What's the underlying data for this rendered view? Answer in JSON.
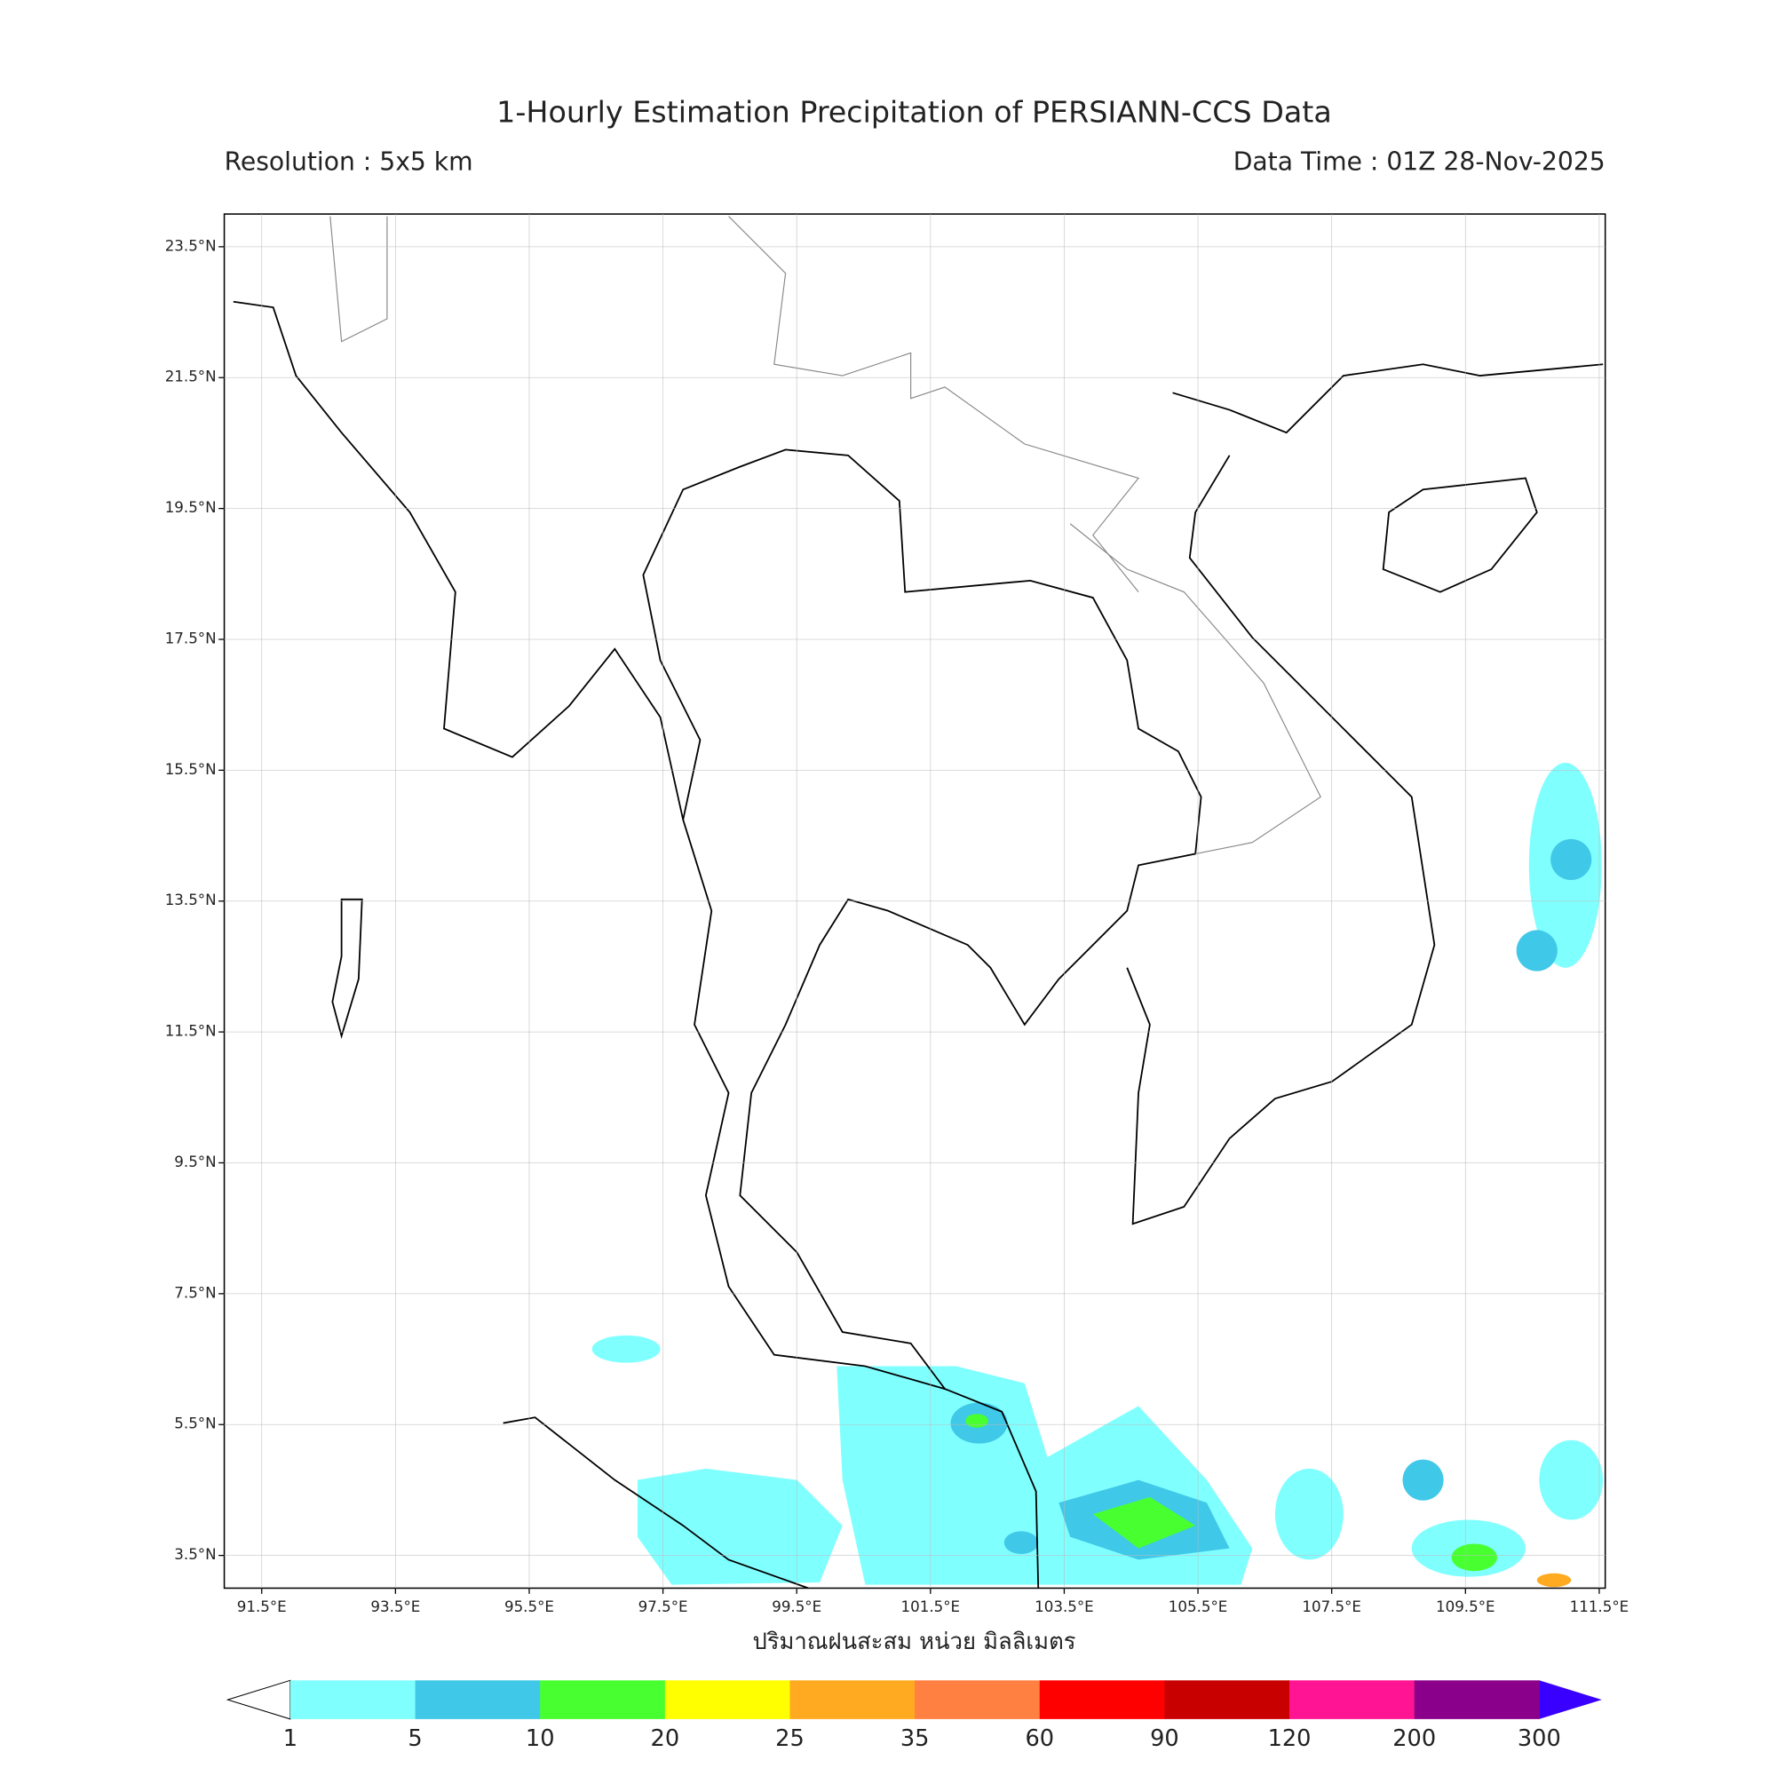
{
  "chart_data": {
    "type": "map",
    "title": "1-Hourly Estimation Precipitation of PERSIANN-CCS Data",
    "subtitle_left": "Resolution : 5x5 km",
    "subtitle_right": "Data Time : 01Z 28-Nov-2025",
    "xlabel": "ปริมาณฝนสะสม หน่วย มิลลิเมตร",
    "xlim": [
      90.94,
      111.59
    ],
    "ylim": [
      3.0,
      24.0
    ],
    "grid": true,
    "xticks": [
      {
        "value": 91.5,
        "label": "91.5°E"
      },
      {
        "value": 93.5,
        "label": "93.5°E"
      },
      {
        "value": 95.5,
        "label": "95.5°E"
      },
      {
        "value": 97.5,
        "label": "97.5°E"
      },
      {
        "value": 99.5,
        "label": "99.5°E"
      },
      {
        "value": 101.5,
        "label": "101.5°E"
      },
      {
        "value": 103.5,
        "label": "103.5°E"
      },
      {
        "value": 105.5,
        "label": "105.5°E"
      },
      {
        "value": 107.5,
        "label": "107.5°E"
      },
      {
        "value": 109.5,
        "label": "109.5°E"
      },
      {
        "value": 111.5,
        "label": "111.5°E"
      }
    ],
    "yticks": [
      {
        "value": 23.5,
        "label": "23.5°N"
      },
      {
        "value": 21.5,
        "label": "21.5°N"
      },
      {
        "value": 19.5,
        "label": "19.5°N"
      },
      {
        "value": 17.5,
        "label": "17.5°N"
      },
      {
        "value": 15.5,
        "label": "15.5°N"
      },
      {
        "value": 13.5,
        "label": "13.5°N"
      },
      {
        "value": 11.5,
        "label": "11.5°N"
      },
      {
        "value": 9.5,
        "label": "9.5°N"
      },
      {
        "value": 7.5,
        "label": "7.5°N"
      },
      {
        "value": 5.5,
        "label": "5.5°N"
      },
      {
        "value": 3.5,
        "label": "3.5°N"
      }
    ],
    "colorbar": {
      "bounds": [
        1,
        5,
        10,
        20,
        25,
        35,
        60,
        90,
        120,
        200,
        300
      ],
      "colors": [
        "#80ffff",
        "#40c8e8",
        "#48ff30",
        "#ffff00",
        "#ffaa20",
        "#ff8040",
        "#ff0000",
        "#c80000",
        "#ff1493",
        "#8b008b"
      ],
      "under_color": "#ffffff",
      "over_color": "#3a00ff"
    }
  }
}
